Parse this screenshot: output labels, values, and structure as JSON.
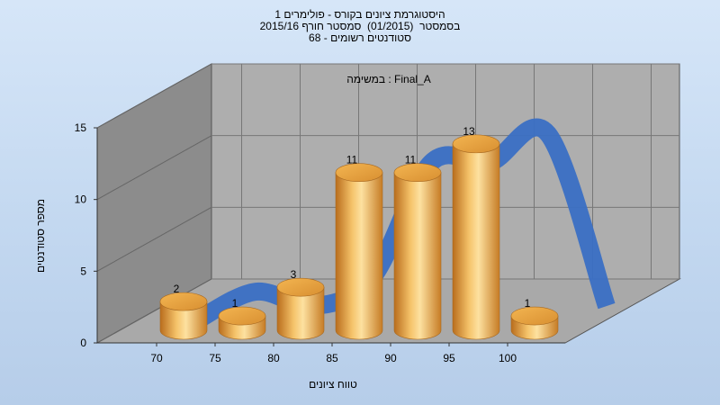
{
  "title_lines": [
    "היסטוגרמת ציונים בקורס - פולימרים 1",
    "בסמסטר  (01/2015)  סמסטר חורף 2015/16",
    "סטודנטים רשומים - 68"
  ],
  "chart_data": {
    "type": "bar",
    "title": "היסטוגרמת ציונים בקורס - פולימרים 1",
    "annotation": "במשימה : Final_A",
    "xlabel": "טווח ציונים",
    "ylabel": "מספר סטודנטים",
    "x_ticks": [
      "70",
      "75",
      "80",
      "85",
      "90",
      "95",
      "100"
    ],
    "y_ticks": [
      "0",
      "5",
      "10",
      "15"
    ],
    "ylim": [
      0,
      15
    ],
    "bars": [
      {
        "bin": 70,
        "value": 2,
        "label": "2"
      },
      {
        "bin": 75,
        "value": 1,
        "label": "1"
      },
      {
        "bin": 80,
        "value": 3,
        "label": "3"
      },
      {
        "bin": 85,
        "value": 11,
        "label": "11"
      },
      {
        "bin": 90,
        "value": 11,
        "label": "11"
      },
      {
        "bin": 95,
        "value": 13,
        "label": "13"
      },
      {
        "bin": 100,
        "value": 1,
        "label": "1"
      }
    ],
    "curve": {
      "type": "smoothed-line",
      "x": [
        70,
        75,
        80,
        85,
        90,
        95,
        100,
        105
      ],
      "values": [
        0,
        2,
        1,
        3,
        11,
        11,
        13,
        1
      ]
    },
    "grid": true,
    "colors": {
      "bar": "#e8a848",
      "curve": "#3a6fc4"
    }
  }
}
